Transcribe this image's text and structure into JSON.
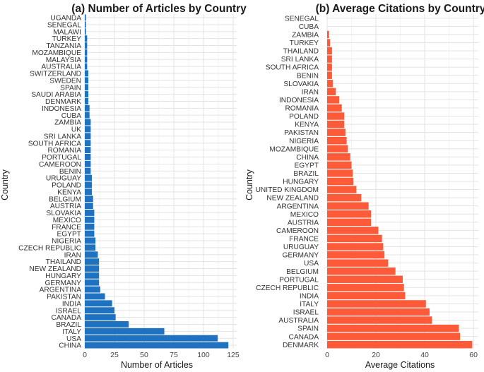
{
  "chart_data": [
    {
      "type": "bar",
      "orientation": "horizontal",
      "title": "(a) Number of Articles by Country",
      "xlabel": "Number of Articles",
      "ylabel": "Country",
      "xlim": [
        0,
        128
      ],
      "xticks": [
        0,
        25,
        50,
        75,
        100,
        125
      ],
      "color": "#1f72c0",
      "categories": [
        "UGANDA",
        "SENEGAL",
        "MALAWI",
        "TURKEY",
        "TANZANIA",
        "MOZAMBIQUE",
        "MALAYSIA",
        "AUSTRALIA",
        "SWITZERLAND",
        "SWEDEN",
        "SPAIN",
        "SAUDI ARABIA",
        "DENMARK",
        "INDONESIA",
        "CUBA",
        "ZAMBIA",
        "UK",
        "SRI LANKA",
        "SOUTH AFRICA",
        "ROMANIA",
        "PORTUGAL",
        "CAMEROON",
        "BENIN",
        "URUGUAY",
        "POLAND",
        "KENYA",
        "BELGIUM",
        "AUSTRIA",
        "SLOVAKIA",
        "MEXICO",
        "FRANCE",
        "EGYPT",
        "NIGERIA",
        "CZECH REPUBLIC",
        "IRAN",
        "THAILAND",
        "NEW ZEALAND",
        "HUNGARY",
        "GERMANY",
        "ARGENTINA",
        "PAKISTAN",
        "INDIA",
        "ISRAEL",
        "CANADA",
        "BRAZIL",
        "ITALY",
        "USA",
        "CHINA"
      ],
      "values": [
        1,
        1,
        1,
        2,
        2,
        2,
        2,
        2,
        3,
        3,
        3,
        3,
        3,
        4,
        4,
        5,
        5,
        5,
        5,
        5,
        5,
        5,
        5,
        6,
        6,
        6,
        7,
        7,
        8,
        8,
        8,
        8,
        9,
        9,
        11,
        12,
        12,
        12,
        12,
        13,
        17,
        23,
        25,
        26,
        37,
        67,
        112,
        121
      ]
    },
    {
      "type": "bar",
      "orientation": "horizontal",
      "title": "(b) Average Citations by Country",
      "xlabel": "Average Citations",
      "ylabel": "Country",
      "xlim": [
        0,
        62
      ],
      "xticks": [
        0,
        20,
        40,
        60
      ],
      "color": "#fd5a3a",
      "categories": [
        "SENEGAL",
        "CUBA",
        "ZAMBIA",
        "TURKEY",
        "THAILAND",
        "SRI LANKA",
        "SOUTH AFRICA",
        "BENIN",
        "SLOVAKIA",
        "IRAN",
        "INDONESIA",
        "ROMANIA",
        "POLAND",
        "KENYA",
        "PAKISTAN",
        "NIGERIA",
        "MOZAMBIQUE",
        "CHINA",
        "EGYPT",
        "BRAZIL",
        "HUNGARY",
        "UNITED KINGDOM",
        "NEW ZEALAND",
        "ARGENTINA",
        "MEXICO",
        "AUSTRIA",
        "CAMEROON",
        "FRANCE",
        "URUGUAY",
        "GERMANY",
        "USA",
        "BELGIUM",
        "PORTUGAL",
        "CZECH REPUBLIC",
        "INDIA",
        "ITALY",
        "ISRAEL",
        "AUSTRALIA",
        "SPAIN",
        "CANADA",
        "DENMARK"
      ],
      "values": [
        0,
        0,
        0.8,
        1.2,
        2,
        2,
        2,
        2,
        2.3,
        3.5,
        5,
        6,
        7,
        7,
        7.5,
        8,
        8.5,
        9.5,
        10,
        10.5,
        10.8,
        12,
        14,
        17,
        18,
        18,
        21,
        22.5,
        23,
        23.5,
        25,
        28,
        31,
        31.5,
        32,
        40.5,
        42,
        43,
        54,
        54.5,
        59.5
      ]
    }
  ]
}
